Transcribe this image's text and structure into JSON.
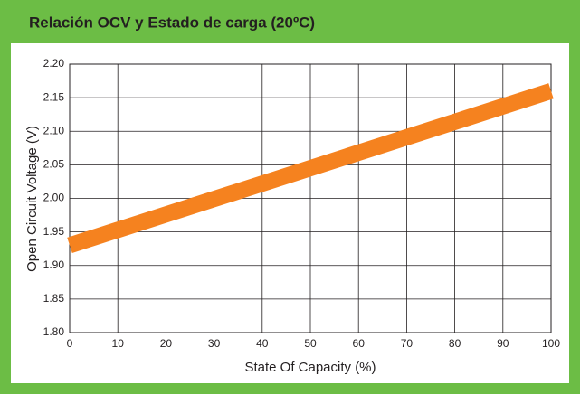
{
  "chart_data": {
    "type": "line",
    "title": "Relación OCV y Estado de carga (20ºC)",
    "x_label": "State Of Capacity (%)",
    "y_label": "Open Circuit Voltage (V)",
    "x": [
      0,
      100
    ],
    "series": [
      {
        "name": null,
        "color": "#f5821f",
        "values": [
          1.93,
          2.16
        ]
      }
    ],
    "xlim": [
      0,
      100
    ],
    "xticks": [
      0,
      10,
      20,
      30,
      40,
      50,
      60,
      70,
      80,
      90,
      100
    ],
    "ylim": [
      1.8,
      2.2
    ],
    "yticks": [
      {
        "value": 1.8,
        "label": "1.80"
      },
      1.85,
      {
        "value": 1.9,
        "label": "1.90"
      },
      1.95,
      {
        "value": 2.0,
        "label": "2.00"
      },
      2.05,
      {
        "value": 2.1,
        "label": "2.10"
      },
      2.15,
      {
        "value": 2.2,
        "label": "2.20"
      }
    ],
    "grid": true
  }
}
